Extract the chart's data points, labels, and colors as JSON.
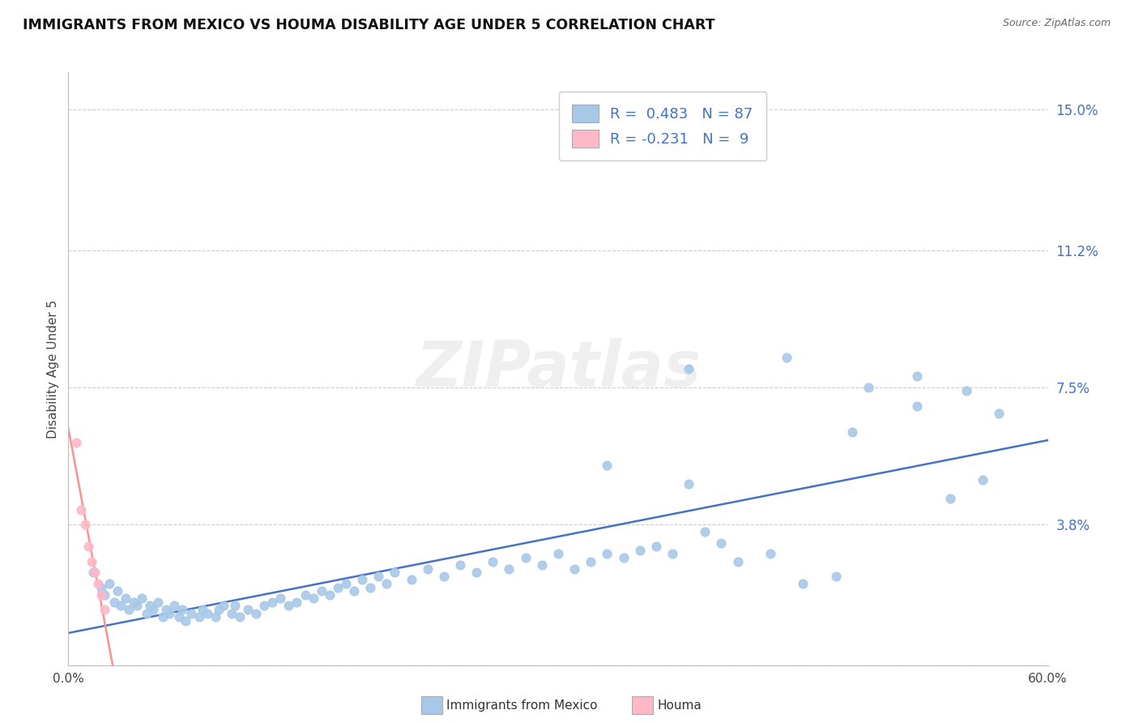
{
  "title": "IMMIGRANTS FROM MEXICO VS HOUMA DISABILITY AGE UNDER 5 CORRELATION CHART",
  "source": "Source: ZipAtlas.com",
  "ylabel": "Disability Age Under 5",
  "xlim": [
    0.0,
    0.6
  ],
  "ylim": [
    0.0,
    0.16
  ],
  "yticks": [
    0.0,
    0.038,
    0.075,
    0.112,
    0.15
  ],
  "ytick_labels": [
    "",
    "3.8%",
    "7.5%",
    "11.2%",
    "15.0%"
  ],
  "xticks": [
    0.0,
    0.1,
    0.2,
    0.3,
    0.4,
    0.5,
    0.6
  ],
  "xtick_labels": [
    "0.0%",
    "",
    "",
    "",
    "",
    "",
    "60.0%"
  ],
  "blue_color": "#A8C8E8",
  "pink_color": "#FFB8C8",
  "blue_line_color": "#4472C4",
  "pink_line_color": "#FF9090",
  "R_blue": 0.483,
  "N_blue": 87,
  "R_pink": -0.231,
  "N_pink": 9,
  "watermark": "ZIPatlas",
  "blue_scatter_x": [
    0.015,
    0.02,
    0.022,
    0.025,
    0.028,
    0.03,
    0.032,
    0.035,
    0.037,
    0.04,
    0.042,
    0.045,
    0.048,
    0.05,
    0.052,
    0.055,
    0.058,
    0.06,
    0.062,
    0.065,
    0.068,
    0.07,
    0.072,
    0.075,
    0.08,
    0.082,
    0.085,
    0.09,
    0.092,
    0.095,
    0.1,
    0.102,
    0.105,
    0.11,
    0.115,
    0.12,
    0.125,
    0.13,
    0.135,
    0.14,
    0.145,
    0.15,
    0.155,
    0.16,
    0.165,
    0.17,
    0.175,
    0.18,
    0.185,
    0.19,
    0.195,
    0.2,
    0.21,
    0.22,
    0.23,
    0.24,
    0.25,
    0.26,
    0.27,
    0.28,
    0.29,
    0.3,
    0.31,
    0.32,
    0.33,
    0.34,
    0.35,
    0.36,
    0.37,
    0.38,
    0.39,
    0.4,
    0.41,
    0.43,
    0.45,
    0.47,
    0.49,
    0.52,
    0.54,
    0.56,
    0.38,
    0.44,
    0.48,
    0.52,
    0.55,
    0.57,
    0.33
  ],
  "blue_scatter_y": [
    0.025,
    0.021,
    0.019,
    0.022,
    0.017,
    0.02,
    0.016,
    0.018,
    0.015,
    0.017,
    0.016,
    0.018,
    0.014,
    0.016,
    0.015,
    0.017,
    0.013,
    0.015,
    0.014,
    0.016,
    0.013,
    0.015,
    0.012,
    0.014,
    0.013,
    0.015,
    0.014,
    0.013,
    0.015,
    0.016,
    0.014,
    0.016,
    0.013,
    0.015,
    0.014,
    0.016,
    0.017,
    0.018,
    0.016,
    0.017,
    0.019,
    0.018,
    0.02,
    0.019,
    0.021,
    0.022,
    0.02,
    0.023,
    0.021,
    0.024,
    0.022,
    0.025,
    0.023,
    0.026,
    0.024,
    0.027,
    0.025,
    0.028,
    0.026,
    0.029,
    0.027,
    0.03,
    0.026,
    0.028,
    0.03,
    0.029,
    0.031,
    0.032,
    0.03,
    0.049,
    0.036,
    0.033,
    0.028,
    0.03,
    0.022,
    0.024,
    0.075,
    0.078,
    0.045,
    0.05,
    0.08,
    0.083,
    0.063,
    0.07,
    0.074,
    0.068,
    0.054
  ],
  "pink_scatter_x": [
    0.005,
    0.008,
    0.01,
    0.012,
    0.014,
    0.016,
    0.018,
    0.02,
    0.022
  ],
  "pink_scatter_y": [
    0.06,
    0.042,
    0.038,
    0.032,
    0.028,
    0.025,
    0.022,
    0.019,
    0.015
  ],
  "legend_blue_text": "R =  0.483   N = 87",
  "legend_pink_text": "R = -0.231   N =  9",
  "legend_label_blue": "Immigrants from Mexico",
  "legend_label_pink": "Houma",
  "background_color": "#FFFFFF",
  "grid_color": "#CCCCCC"
}
